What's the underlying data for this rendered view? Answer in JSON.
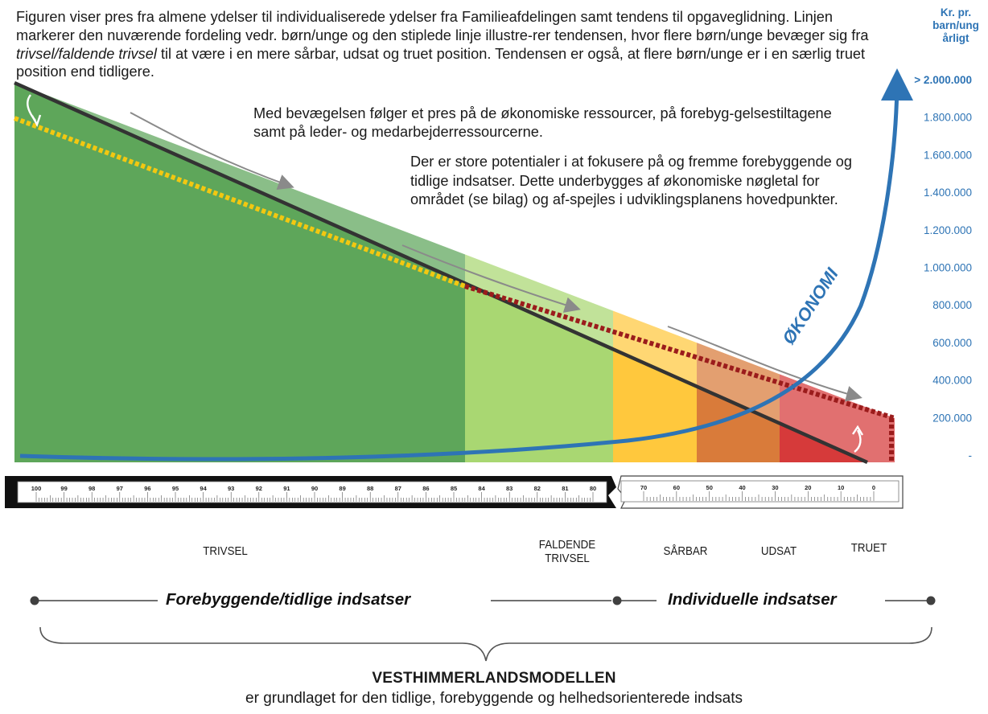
{
  "intro": {
    "part1": "Figuren viser pres fra almene ydelser til individualiserede ydelser fra Familieafdelingen samt tendens til opgaveglidning. Linjen markerer den nuværende fordeling vedr. børn/unge og den stiplede linje illustre-rer tendensen, hvor flere børn/unge bevæger sig fra ",
    "italic": "trivsel/faldende trivsel",
    "part2": " til at være i en mere sårbar, udsat og truet position. Tendensen er også, at flere børn/unge er i en særlig truet position end tidligere."
  },
  "paragraph2": "Med bevægelsen følger et pres på de økonomiske ressourcer, på forebyg-gelsestiltagene samt på leder- og medarbejderressourcerne.",
  "paragraph3": "Der er store potentialer i at fokusere på og fremme forebyggende og tidlige indsatser. Dette underbygges af økonomiske nøgletal for området (se bilag) og af-spejles i udviklingsplanens hovedpunkter.",
  "axis": {
    "title_lines": [
      "Kr. pr.",
      "barn/ung",
      "årligt"
    ],
    "ticks": [
      "> 2.000.000",
      "1.800.000",
      "1.600.000",
      "1.400.000",
      "1.200.000",
      "1.000.000",
      "800.000",
      "600.000",
      "400.000",
      "200.000",
      "-"
    ],
    "color": "#2e74b5"
  },
  "curve_label": "ØKONOMI",
  "ruler": {
    "left_labels": [
      "100",
      "99",
      "98",
      "97",
      "96",
      "95",
      "94",
      "93",
      "92",
      "91",
      "90",
      "89",
      "88",
      "87",
      "86",
      "85",
      "84",
      "83",
      "82",
      "81",
      "80"
    ],
    "right_labels": [
      "70",
      "60",
      "50",
      "40",
      "30",
      "20",
      "10",
      "0"
    ]
  },
  "stages": [
    {
      "label": "TRIVSEL",
      "color": "#5ea65a"
    },
    {
      "label": "FALDENDE\nTRIVSEL",
      "color": "#a9d772"
    },
    {
      "label": "SÅRBAR",
      "color": "#ffc83d"
    },
    {
      "label": "UDSAT",
      "color": "#d97b3a"
    },
    {
      "label": "TRUET",
      "color": "#d63a3a"
    }
  ],
  "phases": {
    "left": "Forebyggende/tidlige indsatser",
    "right": "Individuelle indsatser"
  },
  "model": {
    "title": "VESTHIMMERLANDSMODELLEN",
    "subtitle": "er grundlaget for den tidlige, forebyggende og helhedsorienterede indsats"
  }
}
